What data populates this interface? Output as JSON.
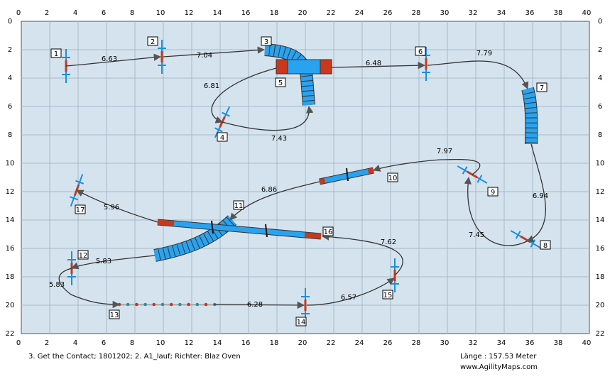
{
  "axes": {
    "x_ticks": [
      "0",
      "2",
      "4",
      "6",
      "8",
      "10",
      "12",
      "14",
      "16",
      "18",
      "20",
      "22",
      "24",
      "26",
      "28",
      "30",
      "32",
      "34",
      "36",
      "38",
      "40"
    ],
    "y_ticks": [
      "0",
      "2",
      "4",
      "6",
      "8",
      "10",
      "12",
      "14",
      "16",
      "18",
      "20",
      "22"
    ]
  },
  "obstacles": [
    "1",
    "2",
    "3",
    "4",
    "5",
    "6",
    "7",
    "8",
    "9",
    "10",
    "11",
    "12",
    "13",
    "14",
    "15",
    "16",
    "17"
  ],
  "distances": [
    "6.63",
    "7.04",
    "6.48",
    "7.79",
    "6.81",
    "7.43",
    "7.97",
    "6.94",
    "7.45",
    "6.86",
    "5.96",
    "7.62",
    "5.83",
    "5.83",
    "6.28",
    "6.57"
  ],
  "footer": {
    "left": "3. Get the Contact; 1801202; 2. A1_lauf; Richter: Blaz Oven",
    "length": "Länge : 157.53 Meter",
    "url": "www.AgilityMaps.com"
  }
}
